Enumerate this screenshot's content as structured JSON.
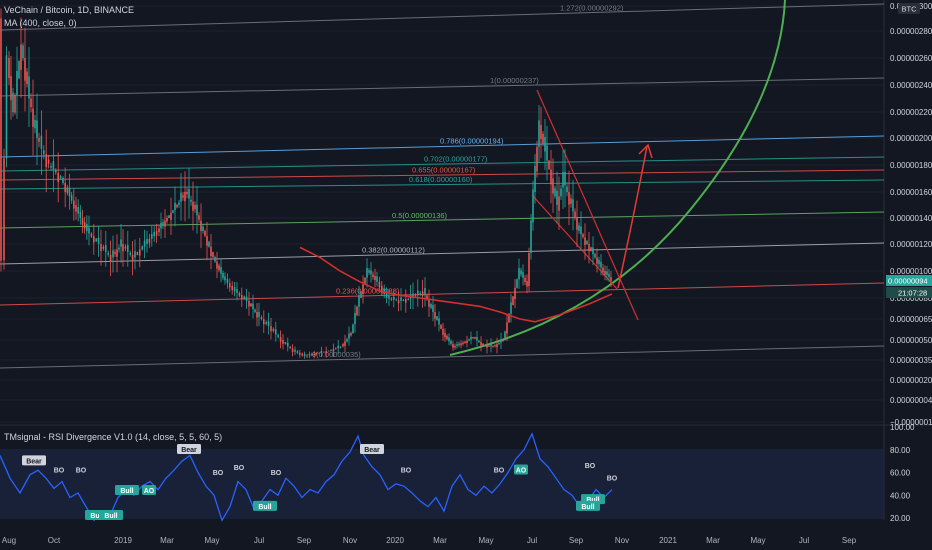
{
  "header": {
    "symbol_title": "VeChain / Bitcoin, 1D, BINANCE",
    "indicator_ma": "MA (400, close, 0)",
    "currency_badge": "BTC"
  },
  "rsi_panel": {
    "title": "TMsignal - RSI Divergence V1.0 (14, close, 5, 5, 60, 5)"
  },
  "colors": {
    "background": "#131722",
    "candle_up": "#26a69a",
    "candle_down": "#ef5350",
    "ma": "#d32f2f",
    "parabola": "#4caf50",
    "rsi_line": "#2962ff",
    "price_badge": "#26a69a"
  },
  "chart_data": [
    {
      "type": "candlestick",
      "y_ticks": [
        "0.00000300",
        "0.00000280",
        "0.00000260",
        "0.00000240",
        "0.00000220",
        "0.00000200",
        "0.00000180",
        "0.00000160",
        "0.00000140",
        "0.00000120",
        "0.00000100",
        "0.00000080",
        "0.00000065",
        "0.00000050",
        "0.00000035",
        "0.00000020",
        "0.00000004",
        "−0.00000011"
      ],
      "x_ticks": [
        "Aug",
        "Oct",
        "2019",
        "Mar",
        "May",
        "Jul",
        "Sep",
        "Nov",
        "2020",
        "Mar",
        "May",
        "Jul",
        "Sep",
        "Nov",
        "2021",
        "Mar",
        "May",
        "Jul",
        "Sep"
      ],
      "current_price": "0.00000094",
      "countdown": "21:07:28",
      "fib_levels": [
        {
          "label": "1.272(0.00000292)",
          "color": "#787b86"
        },
        {
          "label": "1(0.00000237)",
          "color": "#787b86"
        },
        {
          "label": "0.786(0.00000194)",
          "color": "#64b5f6"
        },
        {
          "label": "0.702(0.00000177)",
          "color": "#26a69a"
        },
        {
          "label": "0.655(0.00000167)",
          "color": "#ef5350"
        },
        {
          "label": "0.618(0.00000160)",
          "color": "#26a69a"
        },
        {
          "label": "0.5(0.00000136)",
          "color": "#66bb6a"
        },
        {
          "label": "0.382(0.00000112)",
          "color": "#b2b5be"
        },
        {
          "label": "0.236(0.00000083)",
          "color": "#ef5350"
        },
        {
          "label": "0(0.00000035)",
          "color": "#787b86"
        }
      ],
      "price_path": [
        [
          0,
          2.9e-06
        ],
        [
          3,
          1.1e-06
        ],
        [
          8,
          2.6e-06
        ],
        [
          14,
          2.2e-06
        ],
        [
          22,
          2.7e-06
        ],
        [
          30,
          2.3e-06
        ],
        [
          38,
          2e-06
        ],
        [
          50,
          1.8e-06
        ],
        [
          62,
          1.7e-06
        ],
        [
          75,
          1.5e-06
        ],
        [
          88,
          1.3e-06
        ],
        [
          100,
          1.2e-06
        ],
        [
          112,
          1.1e-06
        ],
        [
          122,
          1.2e-06
        ],
        [
          134,
          1.1e-06
        ],
        [
          146,
          1.2e-06
        ],
        [
          158,
          1.3e-06
        ],
        [
          168,
          1.4e-06
        ],
        [
          178,
          1.5e-06
        ],
        [
          186,
          1.6e-06
        ],
        [
          194,
          1.5e-06
        ],
        [
          204,
          1.3e-06
        ],
        [
          214,
          1.1e-06
        ],
        [
          224,
          9.5e-07
        ],
        [
          236,
          8.5e-07
        ],
        [
          248,
          7.8e-07
        ],
        [
          258,
          6.8e-07
        ],
        [
          270,
          6e-07
        ],
        [
          282,
          5e-07
        ],
        [
          294,
          4.2e-07
        ],
        [
          306,
          3.8e-07
        ],
        [
          318,
          4e-07
        ],
        [
          330,
          4.2e-07
        ],
        [
          342,
          4.5e-07
        ],
        [
          352,
          5.5e-07
        ],
        [
          360,
          8e-07
        ],
        [
          368,
          1e-06
        ],
        [
          376,
          9.5e-07
        ],
        [
          388,
          8e-07
        ],
        [
          400,
          7.8e-07
        ],
        [
          412,
          8e-07
        ],
        [
          424,
          8.5e-07
        ],
        [
          434,
          7e-07
        ],
        [
          444,
          5.5e-07
        ],
        [
          454,
          4.5e-07
        ],
        [
          464,
          4.8e-07
        ],
        [
          474,
          5.2e-07
        ],
        [
          484,
          4.6e-07
        ],
        [
          494,
          4.5e-07
        ],
        [
          504,
          5e-07
        ],
        [
          512,
          7.5e-07
        ],
        [
          520,
          1e-06
        ],
        [
          528,
          9e-07
        ],
        [
          534,
          1.6e-06
        ],
        [
          540,
          2.1e-06
        ],
        [
          546,
          1.9e-06
        ],
        [
          552,
          1.7e-06
        ],
        [
          558,
          1.5e-06
        ],
        [
          564,
          1.7e-06
        ],
        [
          572,
          1.5e-06
        ],
        [
          580,
          1.3e-06
        ],
        [
          588,
          1.2e-06
        ],
        [
          596,
          1.1e-06
        ],
        [
          604,
          1e-06
        ],
        [
          612,
          9.4e-07
        ]
      ],
      "ma_path": [
        [
          300,
          1.175e-06
        ],
        [
          320,
          1.1e-06
        ],
        [
          340,
          1e-06
        ],
        [
          360,
          9.2e-07
        ],
        [
          380,
          8.5e-07
        ],
        [
          400,
          8.2e-07
        ],
        [
          420,
          8e-07
        ],
        [
          440,
          7.8e-07
        ],
        [
          460,
          7.6e-07
        ],
        [
          480,
          7.4e-07
        ],
        [
          500,
          7e-07
        ],
        [
          520,
          6.5e-07
        ],
        [
          535,
          6.3e-07
        ],
        [
          560,
          6.8e-07
        ],
        [
          590,
          7.6e-07
        ],
        [
          612,
          8.3e-07
        ]
      ],
      "rsi_range": [
        20,
        100
      ],
      "rsi_ticks": [
        "100.00",
        "80.00",
        "60.00",
        "40.00",
        "20.00"
      ],
      "rsi_path": [
        [
          0,
          75
        ],
        [
          10,
          55
        ],
        [
          20,
          42
        ],
        [
          30,
          58
        ],
        [
          38,
          62
        ],
        [
          46,
          55
        ],
        [
          54,
          46
        ],
        [
          62,
          52
        ],
        [
          70,
          38
        ],
        [
          78,
          42
        ],
        [
          86,
          30
        ],
        [
          94,
          18
        ],
        [
          102,
          25
        ],
        [
          110,
          22
        ],
        [
          118,
          38
        ],
        [
          126,
          45
        ],
        [
          134,
          40
        ],
        [
          142,
          48
        ],
        [
          150,
          52
        ],
        [
          158,
          45
        ],
        [
          166,
          55
        ],
        [
          174,
          62
        ],
        [
          182,
          70
        ],
        [
          190,
          75
        ],
        [
          198,
          60
        ],
        [
          206,
          48
        ],
        [
          214,
          40
        ],
        [
          222,
          18
        ],
        [
          230,
          30
        ],
        [
          238,
          52
        ],
        [
          246,
          45
        ],
        [
          254,
          28
        ],
        [
          262,
          35
        ],
        [
          270,
          45
        ],
        [
          278,
          40
        ],
        [
          286,
          55
        ],
        [
          294,
          48
        ],
        [
          302,
          38
        ],
        [
          310,
          45
        ],
        [
          318,
          42
        ],
        [
          326,
          52
        ],
        [
          334,
          58
        ],
        [
          342,
          70
        ],
        [
          350,
          78
        ],
        [
          358,
          92
        ],
        [
          364,
          75
        ],
        [
          372,
          65
        ],
        [
          380,
          58
        ],
        [
          388,
          45
        ],
        [
          396,
          50
        ],
        [
          404,
          48
        ],
        [
          412,
          42
        ],
        [
          420,
          35
        ],
        [
          428,
          30
        ],
        [
          436,
          38
        ],
        [
          444,
          26
        ],
        [
          452,
          48
        ],
        [
          460,
          58
        ],
        [
          468,
          45
        ],
        [
          476,
          40
        ],
        [
          484,
          48
        ],
        [
          492,
          42
        ],
        [
          500,
          50
        ],
        [
          508,
          60
        ],
        [
          516,
          72
        ],
        [
          524,
          80
        ],
        [
          532,
          94
        ],
        [
          540,
          72
        ],
        [
          548,
          65
        ],
        [
          556,
          55
        ],
        [
          564,
          45
        ],
        [
          572,
          40
        ],
        [
          580,
          30
        ],
        [
          588,
          35
        ],
        [
          596,
          45
        ],
        [
          604,
          38
        ],
        [
          612,
          45
        ]
      ],
      "signals": [
        {
          "label": "Bear",
          "type": "bear",
          "x": 34,
          "rsi": 68
        },
        {
          "label": "BO",
          "type": "bo",
          "x": 59,
          "rsi": 60
        },
        {
          "label": "BO",
          "type": "bo",
          "x": 81,
          "rsi": 60
        },
        {
          "label": "Bull",
          "type": "bull",
          "x": 97,
          "rsi": 20
        },
        {
          "label": "Bull",
          "type": "bull",
          "x": 111,
          "rsi": 20
        },
        {
          "label": "Bull",
          "type": "bull",
          "x": 127,
          "rsi": 42
        },
        {
          "label": "AO",
          "type": "bull",
          "x": 149,
          "rsi": 42
        },
        {
          "label": "Bear",
          "type": "bear",
          "x": 189,
          "rsi": 78
        },
        {
          "label": "BO",
          "type": "bo",
          "x": 218,
          "rsi": 58
        },
        {
          "label": "BO",
          "type": "bo",
          "x": 239,
          "rsi": 62
        },
        {
          "label": "BO",
          "type": "bo",
          "x": 276,
          "rsi": 58
        },
        {
          "label": "Bull",
          "type": "bull",
          "x": 265,
          "rsi": 28
        },
        {
          "label": "Bear",
          "type": "bear",
          "x": 372,
          "rsi": 78
        },
        {
          "label": "BO",
          "type": "bo",
          "x": 406,
          "rsi": 60
        },
        {
          "label": "BO",
          "type": "bo",
          "x": 499,
          "rsi": 60
        },
        {
          "label": "AO",
          "type": "bull",
          "x": 521,
          "rsi": 60
        },
        {
          "label": "BO",
          "type": "bo",
          "x": 590,
          "rsi": 64
        },
        {
          "label": "BO",
          "type": "bo",
          "x": 612,
          "rsi": 53
        },
        {
          "label": "Bull",
          "type": "bull",
          "x": 593,
          "rsi": 34
        },
        {
          "label": "Bull",
          "type": "bull",
          "x": 588,
          "rsi": 28
        }
      ]
    }
  ]
}
